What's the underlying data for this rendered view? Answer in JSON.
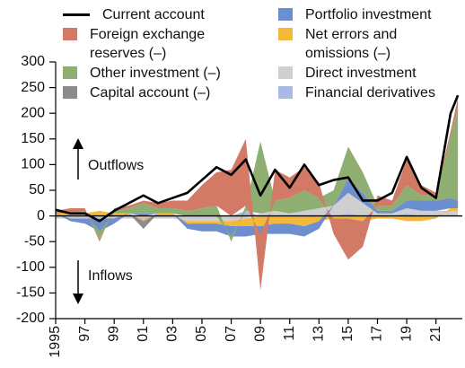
{
  "chart_data": {
    "type": "area",
    "x": [
      1995,
      1996,
      1997,
      1998,
      1999,
      2000,
      2001,
      2002,
      2003,
      2004,
      2005,
      2006,
      2007,
      2008,
      2009,
      2010,
      2011,
      2012,
      2013,
      2014,
      2015,
      2016,
      2017,
      2018,
      2019,
      2020,
      2021,
      2022,
      2022.5
    ],
    "series": [
      {
        "name": "Current account",
        "type": "line",
        "color": "#000000",
        "values": [
          12,
          5,
          5,
          -10,
          10,
          25,
          40,
          25,
          35,
          45,
          70,
          95,
          80,
          110,
          40,
          90,
          55,
          100,
          60,
          70,
          75,
          30,
          30,
          45,
          115,
          55,
          35,
          200,
          235
        ]
      },
      {
        "name": "Foreign exchange reserves (–)",
        "color": "#d27a66",
        "values": [
          5,
          10,
          5,
          -5,
          5,
          5,
          5,
          10,
          15,
          20,
          45,
          65,
          90,
          130,
          -110,
          60,
          40,
          45,
          30,
          -30,
          -80,
          -50,
          20,
          10,
          50,
          20,
          5,
          10,
          20
        ]
      },
      {
        "name": "Other investment (–)",
        "color": "#8fae72",
        "values": [
          0,
          0,
          5,
          -15,
          5,
          10,
          20,
          10,
          10,
          10,
          15,
          20,
          -10,
          10,
          140,
          20,
          30,
          40,
          20,
          30,
          60,
          40,
          10,
          10,
          30,
          10,
          10,
          120,
          180
        ]
      },
      {
        "name": "Capital account (–)",
        "color": "#8c8c8c",
        "values": [
          0,
          0,
          0,
          0,
          0,
          0,
          -15,
          0,
          0,
          0,
          0,
          0,
          0,
          0,
          0,
          0,
          0,
          0,
          0,
          0,
          5,
          0,
          0,
          0,
          0,
          0,
          0,
          0,
          0
        ]
      },
      {
        "name": "Portfolio investment",
        "color": "#6d8fd0",
        "values": [
          0,
          -5,
          -10,
          -25,
          -10,
          0,
          5,
          0,
          0,
          -10,
          -15,
          -15,
          -20,
          -20,
          -15,
          -20,
          -20,
          -20,
          -15,
          0,
          25,
          20,
          5,
          5,
          15,
          20,
          20,
          20,
          15
        ]
      },
      {
        "name": "Net errors and omissions (–)",
        "color": "#f2b93b",
        "values": [
          5,
          5,
          5,
          10,
          5,
          5,
          -5,
          5,
          5,
          -5,
          -5,
          -5,
          -10,
          -15,
          -20,
          -15,
          -15,
          -20,
          -10,
          -5,
          -5,
          -10,
          -5,
          -5,
          -10,
          -10,
          -5,
          5,
          5
        ]
      },
      {
        "name": "Direct investment",
        "color": "#cfcfcf",
        "values": [
          -5,
          -5,
          -5,
          -5,
          -5,
          -5,
          -5,
          -5,
          -5,
          -10,
          -10,
          -10,
          -10,
          -5,
          5,
          10,
          5,
          10,
          15,
          20,
          40,
          25,
          5,
          5,
          10,
          10,
          10,
          10,
          10
        ]
      },
      {
        "name": "Financial derivatives",
        "color": "#a9b9e6",
        "values": [
          0,
          0,
          0,
          0,
          0,
          0,
          0,
          0,
          0,
          0,
          0,
          0,
          0,
          10,
          0,
          0,
          0,
          0,
          0,
          0,
          5,
          0,
          0,
          0,
          5,
          0,
          0,
          0,
          0
        ]
      }
    ],
    "xlim": [
      1995,
      2022.8
    ],
    "xticks": [
      1995,
      {
        "value": 1997,
        "label": "97"
      },
      {
        "value": 1999,
        "label": "99"
      },
      {
        "value": 2001,
        "label": "01"
      },
      {
        "value": 2003,
        "label": "03"
      },
      {
        "value": 2005,
        "label": "05"
      },
      {
        "value": 2007,
        "label": "07"
      },
      {
        "value": 2009,
        "label": "09"
      },
      {
        "value": 2011,
        "label": "11"
      },
      {
        "value": 2013,
        "label": "13"
      },
      {
        "value": 2015,
        "label": "15"
      },
      {
        "value": 2017,
        "label": "17"
      },
      {
        "value": 2019,
        "label": "19"
      },
      {
        "value": 2021,
        "label": "21"
      }
    ],
    "ylim": [
      -200,
      300
    ],
    "yticks": [
      -200,
      -150,
      -100,
      -50,
      0,
      50,
      100,
      150,
      200,
      250,
      300
    ],
    "annotations": [
      "Outflows",
      "Inflows"
    ]
  }
}
